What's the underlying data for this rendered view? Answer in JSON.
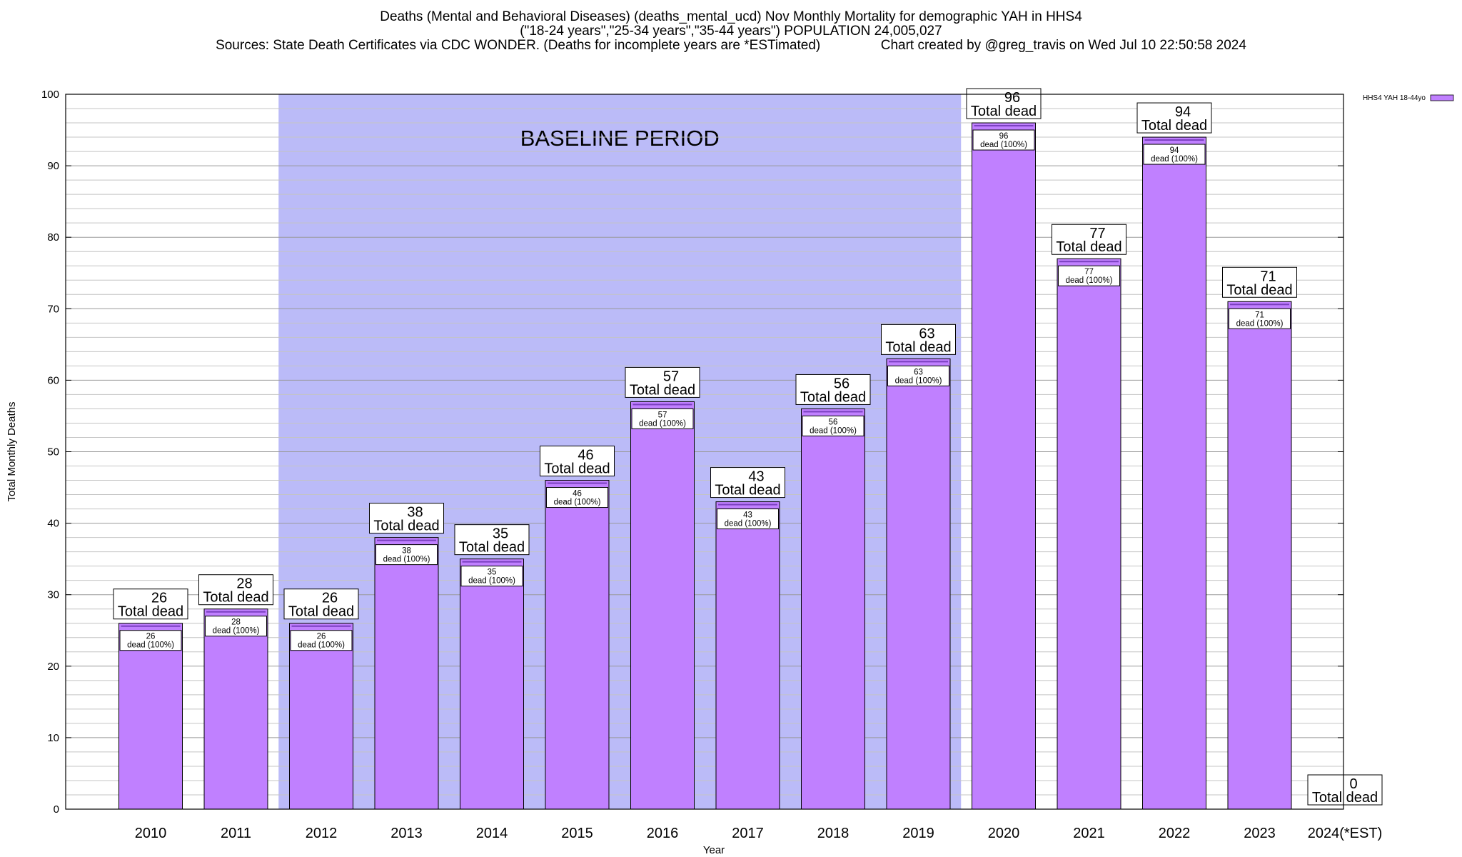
{
  "chart_data": {
    "type": "bar",
    "title_lines": [
      "Deaths (Mental and Behavioral Diseases) (deaths_mental_ucd) Nov Monthly Mortality for demographic YAH in HHS4",
      "(\"18-24 years\",\"25-34 years\",\"35-44 years\") POPULATION 24,005,027",
      "Sources: State Death Certificates via CDC WONDER. (Deaths for incomplete years are *ESTimated)                Chart created by @greg_travis on Wed Jul 10 22:50:58 2024"
    ],
    "xlabel": "Year",
    "ylabel": "Total Monthly Deaths",
    "ylim": [
      0,
      100
    ],
    "yticks": [
      0,
      10,
      20,
      30,
      40,
      50,
      60,
      70,
      80,
      90,
      100
    ],
    "grid": true,
    "legend_position": "top-right",
    "categories": [
      "2010",
      "2011",
      "2012",
      "2013",
      "2014",
      "2015",
      "2016",
      "2017",
      "2018",
      "2019",
      "2020",
      "2021",
      "2022",
      "2023",
      "2024(*EST)"
    ],
    "series": [
      {
        "name": "HHS4 YAH 18-44yo",
        "color": "#c080ff",
        "values": [
          26,
          28,
          26,
          38,
          35,
          46,
          57,
          43,
          56,
          63,
          96,
          77,
          94,
          71,
          0
        ]
      }
    ],
    "total_label_suffix": "Total dead",
    "inner_label_suffix": "dead (100%)",
    "baseline_period": {
      "label": "BASELINE PERIOD",
      "start": "2012",
      "end": "2019",
      "color": "#bbbbf8"
    }
  }
}
